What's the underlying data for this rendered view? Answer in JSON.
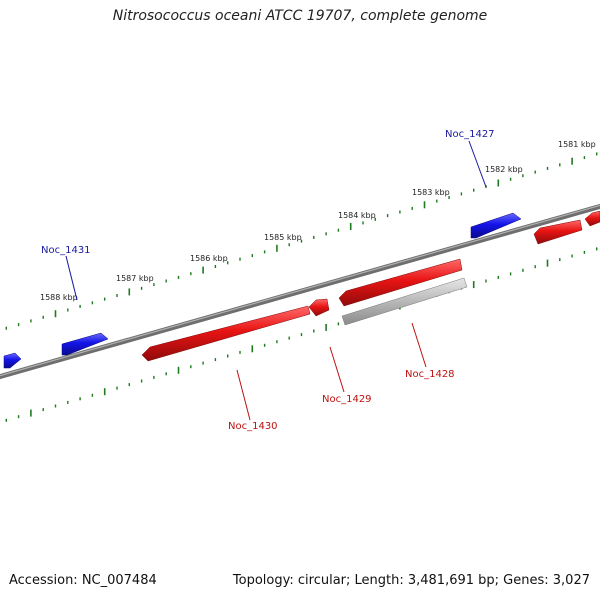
{
  "title": "Nitrosococcus oceani ATCC 19707, complete genome",
  "accession": "Accession: NC_007484",
  "summary": "Topology: circular; Length: 3,481,691 bp; Genes: 3,027",
  "colors": {
    "forward": "#1010e0",
    "reverse": "#e01010",
    "gray": "#b8b8b8",
    "backbone": "#777777",
    "ticks": "#1f7a1f",
    "forward_label": "#1a1aa0",
    "reverse_label": "#c01010"
  },
  "scale_labels": [
    {
      "text": "1588 kbp"
    },
    {
      "text": "1587 kbp"
    },
    {
      "text": "1586 kbp"
    },
    {
      "text": "1585 kbp"
    },
    {
      "text": "1584 kbp"
    },
    {
      "text": "1583 kbp"
    },
    {
      "text": "1582 kbp"
    },
    {
      "text": "1581 kbp"
    }
  ],
  "genes": [
    {
      "name": "Noc_1431",
      "strand": "forward"
    },
    {
      "name": "Noc_1427",
      "strand": "forward"
    },
    {
      "name": "Noc_1430",
      "strand": "reverse"
    },
    {
      "name": "Noc_1429",
      "strand": "reverse"
    },
    {
      "name": "Noc_1428",
      "strand": "reverse"
    }
  ]
}
